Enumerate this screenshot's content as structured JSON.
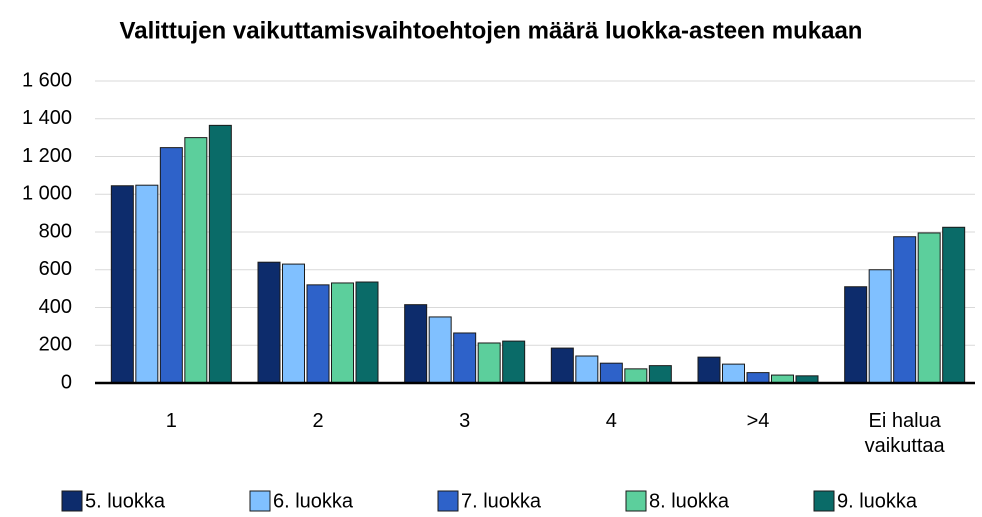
{
  "chart_data": {
    "type": "bar",
    "title": "Valittujen vaikuttamisvaihtoehtojen määrä luokka-asteen mukaan",
    "categories": [
      "1",
      "2",
      "3",
      "4",
      ">4",
      "Ei halua vaikuttaa"
    ],
    "series": [
      {
        "name": "5. luokka",
        "color": "#0d2c6c",
        "values": [
          1045,
          640,
          415,
          185,
          137,
          510
        ]
      },
      {
        "name": "6. luokka",
        "color": "#80c0ff",
        "values": [
          1048,
          630,
          350,
          143,
          100,
          600
        ]
      },
      {
        "name": "7. luokka",
        "color": "#2e62c9",
        "values": [
          1247,
          520,
          265,
          105,
          55,
          775
        ]
      },
      {
        "name": "8. luokka",
        "color": "#5ccf9c",
        "values": [
          1300,
          530,
          212,
          75,
          42,
          795
        ]
      },
      {
        "name": "9. luokka",
        "color": "#0a6b68",
        "values": [
          1365,
          535,
          222,
          92,
          38,
          825
        ]
      }
    ],
    "ylim": [
      0,
      1600
    ],
    "yticks": [
      0,
      200,
      400,
      600,
      800,
      {
        "value": 1000,
        "label": "1 000"
      },
      {
        "value": 1200,
        "label": "1 200"
      },
      {
        "value": 1400,
        "label": "1 400"
      },
      {
        "value": 1600,
        "label": "1 600"
      }
    ],
    "grid": true,
    "legend": "bottom"
  }
}
